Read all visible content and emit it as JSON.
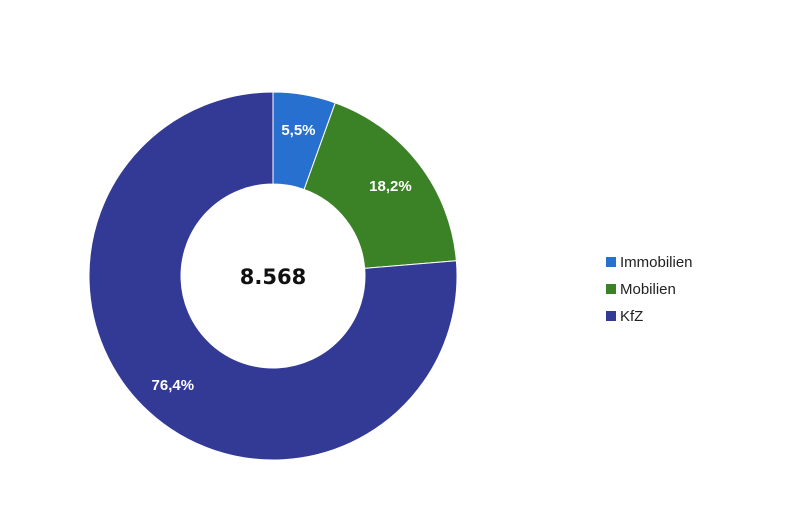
{
  "chart_data": {
    "type": "pie",
    "variant": "donut",
    "center_label": "8.568",
    "categories": [
      "Immobilien",
      "Mobilien",
      "KfZ"
    ],
    "values": [
      5.5,
      18.2,
      76.4
    ],
    "value_labels": [
      "5,5%",
      "18,2%",
      "76,4%"
    ],
    "colors": [
      "#2770d0",
      "#3b8125",
      "#323a95"
    ],
    "start_angle_deg": 0,
    "direction": "clockwise",
    "legend": {
      "position": "right",
      "entries": [
        "Immobilien",
        "Mobilien",
        "KfZ"
      ]
    }
  }
}
